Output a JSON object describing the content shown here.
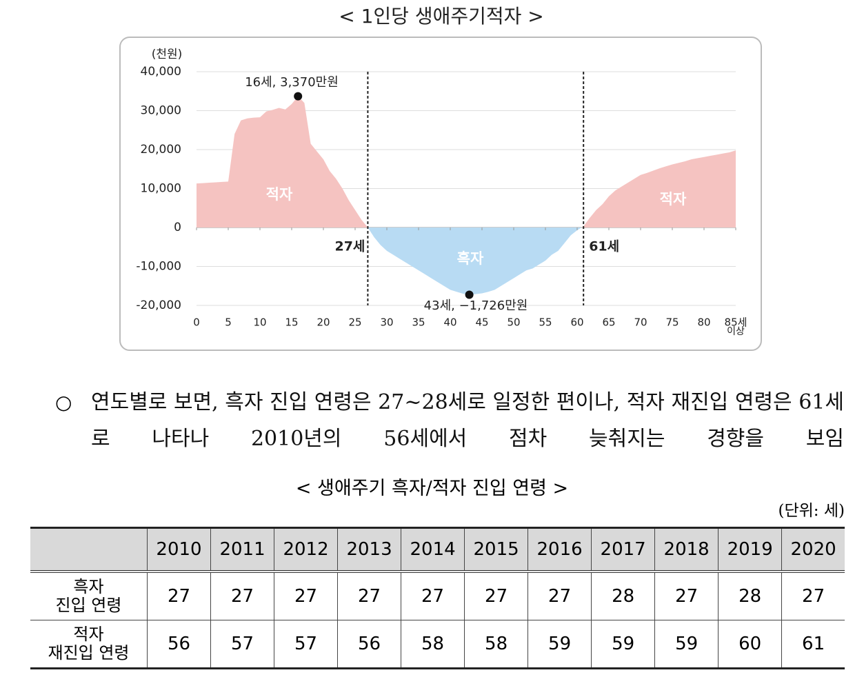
{
  "chart_title": "< 1인당 생애주기적자 >",
  "chart_data": {
    "type": "area",
    "unit_label": "(천원)",
    "x": [
      0,
      1,
      2,
      3,
      4,
      5,
      6,
      7,
      8,
      9,
      10,
      11,
      12,
      13,
      14,
      15,
      16,
      17,
      18,
      19,
      20,
      21,
      22,
      23,
      24,
      25,
      26,
      27,
      28,
      29,
      30,
      31,
      32,
      33,
      34,
      35,
      36,
      37,
      38,
      39,
      40,
      41,
      42,
      43,
      44,
      45,
      46,
      47,
      48,
      49,
      50,
      51,
      52,
      53,
      54,
      55,
      56,
      57,
      58,
      59,
      60,
      61,
      62,
      63,
      64,
      65,
      66,
      67,
      68,
      69,
      70,
      71,
      72,
      73,
      74,
      75,
      76,
      77,
      78,
      79,
      80,
      81,
      82,
      83,
      84,
      85
    ],
    "values": [
      11300,
      11400,
      11500,
      11600,
      11700,
      11800,
      24000,
      27500,
      28000,
      28200,
      28300,
      29800,
      30200,
      30700,
      30300,
      31700,
      33700,
      32000,
      21500,
      19500,
      17500,
      14500,
      12500,
      10000,
      7000,
      4500,
      2000,
      0,
      -2500,
      -4500,
      -6000,
      -7000,
      -8000,
      -9000,
      -10000,
      -11000,
      -12000,
      -13000,
      -14000,
      -15000,
      -16000,
      -16500,
      -17000,
      -17260,
      -17100,
      -16900,
      -16500,
      -16000,
      -15000,
      -14000,
      -13000,
      -12000,
      -11000,
      -10500,
      -9500,
      -8500,
      -7000,
      -6000,
      -4000,
      -2000,
      -700,
      300,
      2500,
      4500,
      6000,
      8000,
      9500,
      10500,
      11500,
      12500,
      13500,
      14000,
      14600,
      15200,
      15700,
      16200,
      16600,
      17000,
      17500,
      17800,
      18100,
      18400,
      18700,
      19000,
      19300,
      19800
    ],
    "xlim": [
      0,
      85
    ],
    "ylim": [
      -20000,
      40000
    ],
    "xticks": [
      0,
      5,
      10,
      15,
      20,
      25,
      30,
      35,
      40,
      45,
      50,
      55,
      60,
      65,
      70,
      75,
      80,
      {
        "value": 85,
        "label": [
          "85세",
          "이상"
        ]
      }
    ],
    "yticks": [
      {
        "value": 40000,
        "label": "40,000"
      },
      {
        "value": 30000,
        "label": "30,000"
      },
      {
        "value": 20000,
        "label": "20,000"
      },
      {
        "value": 10000,
        "label": "10,000"
      },
      0,
      {
        "value": -10000,
        "label": "-10,000"
      },
      {
        "value": -20000,
        "label": "-20,000"
      }
    ],
    "grid": true,
    "positive_color": "#f5c3c1",
    "negative_color": "#b8dbf3",
    "vlines": [
      27,
      61
    ],
    "vline_labels": [
      "27세",
      "61세"
    ],
    "area_labels": [
      "적자",
      "흑자",
      "적자"
    ],
    "annotations": [
      {
        "text": "16세, 3,370만원",
        "x": 16
      },
      {
        "text": "43세, −1,726만원",
        "x": 43
      }
    ]
  },
  "paragraph": {
    "bullet": "○",
    "text": "연도별로 보면, 흑자 진입 연령은 27~28세로 일정한 편이나, 적자 재진입 연령은 61세로 나타나 2010년의 56세에서 점차 늦춰지는 경향을 보임"
  },
  "table": {
    "title": "< 생애주기 흑자/적자 진입 연령 >",
    "unit": "(단위: 세)",
    "header": [
      2010,
      2011,
      2012,
      2013,
      2014,
      2015,
      2016,
      2017,
      2018,
      2019,
      2020
    ],
    "rows": [
      {
        "label": [
          "흑자",
          "진입 연령"
        ],
        "values": [
          27,
          27,
          27,
          27,
          27,
          27,
          27,
          28,
          27,
          28,
          27
        ]
      },
      {
        "label": [
          "적자",
          "재진입 연령"
        ],
        "values": [
          56,
          57,
          57,
          56,
          58,
          58,
          59,
          59,
          59,
          60,
          61
        ]
      }
    ]
  }
}
